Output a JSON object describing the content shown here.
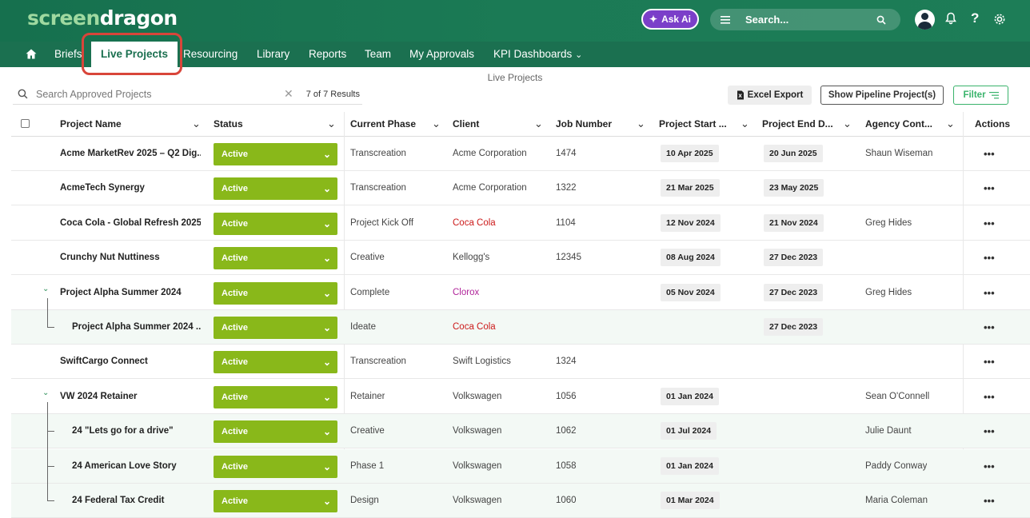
{
  "app": {
    "logo_part1": "screen",
    "logo_part2": "dragon",
    "ask_ai_label": "Ask Ai",
    "search_placeholder": "Search..."
  },
  "nav": {
    "items": [
      "Briefs",
      "Live Projects",
      "Resourcing",
      "Library",
      "Reports",
      "Team",
      "My Approvals",
      "KPI Dashboards"
    ],
    "active": "Live Projects"
  },
  "page": {
    "title": "Live Projects",
    "search_placeholder": "Search  Approved Projects",
    "results_count": "7 of 7 Results",
    "excel_export_label": "Excel Export",
    "pipeline_label": "Show Pipeline Project(s)",
    "filter_label": "Filter"
  },
  "table": {
    "columns": [
      "Project Name",
      "Status",
      "Current Phase",
      "Client",
      "Job Number",
      "Project Start ...",
      "Project End D...",
      "Agency Cont...",
      "Actions"
    ],
    "rows": [
      {
        "name": "Acme MarketRev 2025 – Q2 Dig...",
        "status": "Active",
        "phase": "Transcreation",
        "client": "Acme Corporation",
        "client_color": "#444444",
        "job": "1474",
        "start": "10 Apr 2025",
        "end": "20 Jun 2025",
        "agency": "Shaun Wiseman",
        "level": 0
      },
      {
        "name": "AcmeTech Synergy",
        "status": "Active",
        "phase": "Transcreation",
        "client": "Acme Corporation",
        "client_color": "#444444",
        "job": "1322",
        "start": "21 Mar 2025",
        "end": "23 May 2025",
        "agency": "",
        "level": 0
      },
      {
        "name": "Coca Cola - Global Refresh 2025",
        "status": "Active",
        "phase": "Project Kick Off",
        "client": "Coca Cola",
        "client_color": "#cc1a1a",
        "job": "1104",
        "start": "12 Nov 2024",
        "end": "21 Nov 2024",
        "agency": "Greg Hides",
        "level": 0
      },
      {
        "name": "Crunchy Nut Nuttiness",
        "status": "Active",
        "phase": "Creative",
        "client": "Kellogg's",
        "client_color": "#444444",
        "job": "12345",
        "start": "08 Aug 2024",
        "end": "27 Dec 2023",
        "agency": "",
        "level": 0
      },
      {
        "name": "Project Alpha Summer 2024",
        "status": "Active",
        "phase": "Complete",
        "client": "Clorox",
        "client_color": "#b0249a",
        "job": "",
        "start": "05 Nov 2024",
        "end": "27 Dec 2023",
        "agency": "Greg Hides",
        "level": 0,
        "expanded": true
      },
      {
        "name": "Project Alpha Summer 2024 ...",
        "status": "Active",
        "phase": "Ideate",
        "client": "Coca Cola",
        "client_color": "#cc1a1a",
        "job": "",
        "start": "",
        "end": "27 Dec 2023",
        "agency": "",
        "level": 1
      },
      {
        "name": "SwiftCargo Connect",
        "status": "Active",
        "phase": "Transcreation",
        "client": "Swift Logistics",
        "client_color": "#444444",
        "job": "1324",
        "start": "",
        "end": "",
        "agency": "",
        "level": 0
      },
      {
        "name": "VW 2024 Retainer",
        "status": "Active",
        "phase": "Retainer",
        "client": "Volkswagen",
        "client_color": "#444444",
        "job": "1056",
        "start": "01 Jan 2024",
        "end": "",
        "agency": "Sean O'Connell",
        "level": 0,
        "expanded": true
      },
      {
        "name": "24 \"Lets go for a drive\"",
        "status": "Active",
        "phase": "Creative",
        "client": "Volkswagen",
        "client_color": "#444444",
        "job": "1062",
        "start": "01 Jul 2024",
        "end": "",
        "agency": "Julie Daunt",
        "level": 1
      },
      {
        "name": "24 American Love Story",
        "status": "Active",
        "phase": "Phase 1",
        "client": "Volkswagen",
        "client_color": "#444444",
        "job": "1058",
        "start": "01 Jan 2024",
        "end": "",
        "agency": "Paddy Conway",
        "level": 1
      },
      {
        "name": "24 Federal Tax Credit",
        "status": "Active",
        "phase": "Design",
        "client": "Volkswagen",
        "client_color": "#444444",
        "job": "1060",
        "start": "01 Mar 2024",
        "end": "",
        "agency": "Maria Coleman",
        "level": 1
      }
    ],
    "actions_glyph": "•••"
  },
  "colors": {
    "brand_green": "#1b7050",
    "status_green": "#89b81a",
    "ask_ai_purple": "#7b3fc9",
    "highlight_red": "#d9453a",
    "filter_green": "#39b36b"
  }
}
